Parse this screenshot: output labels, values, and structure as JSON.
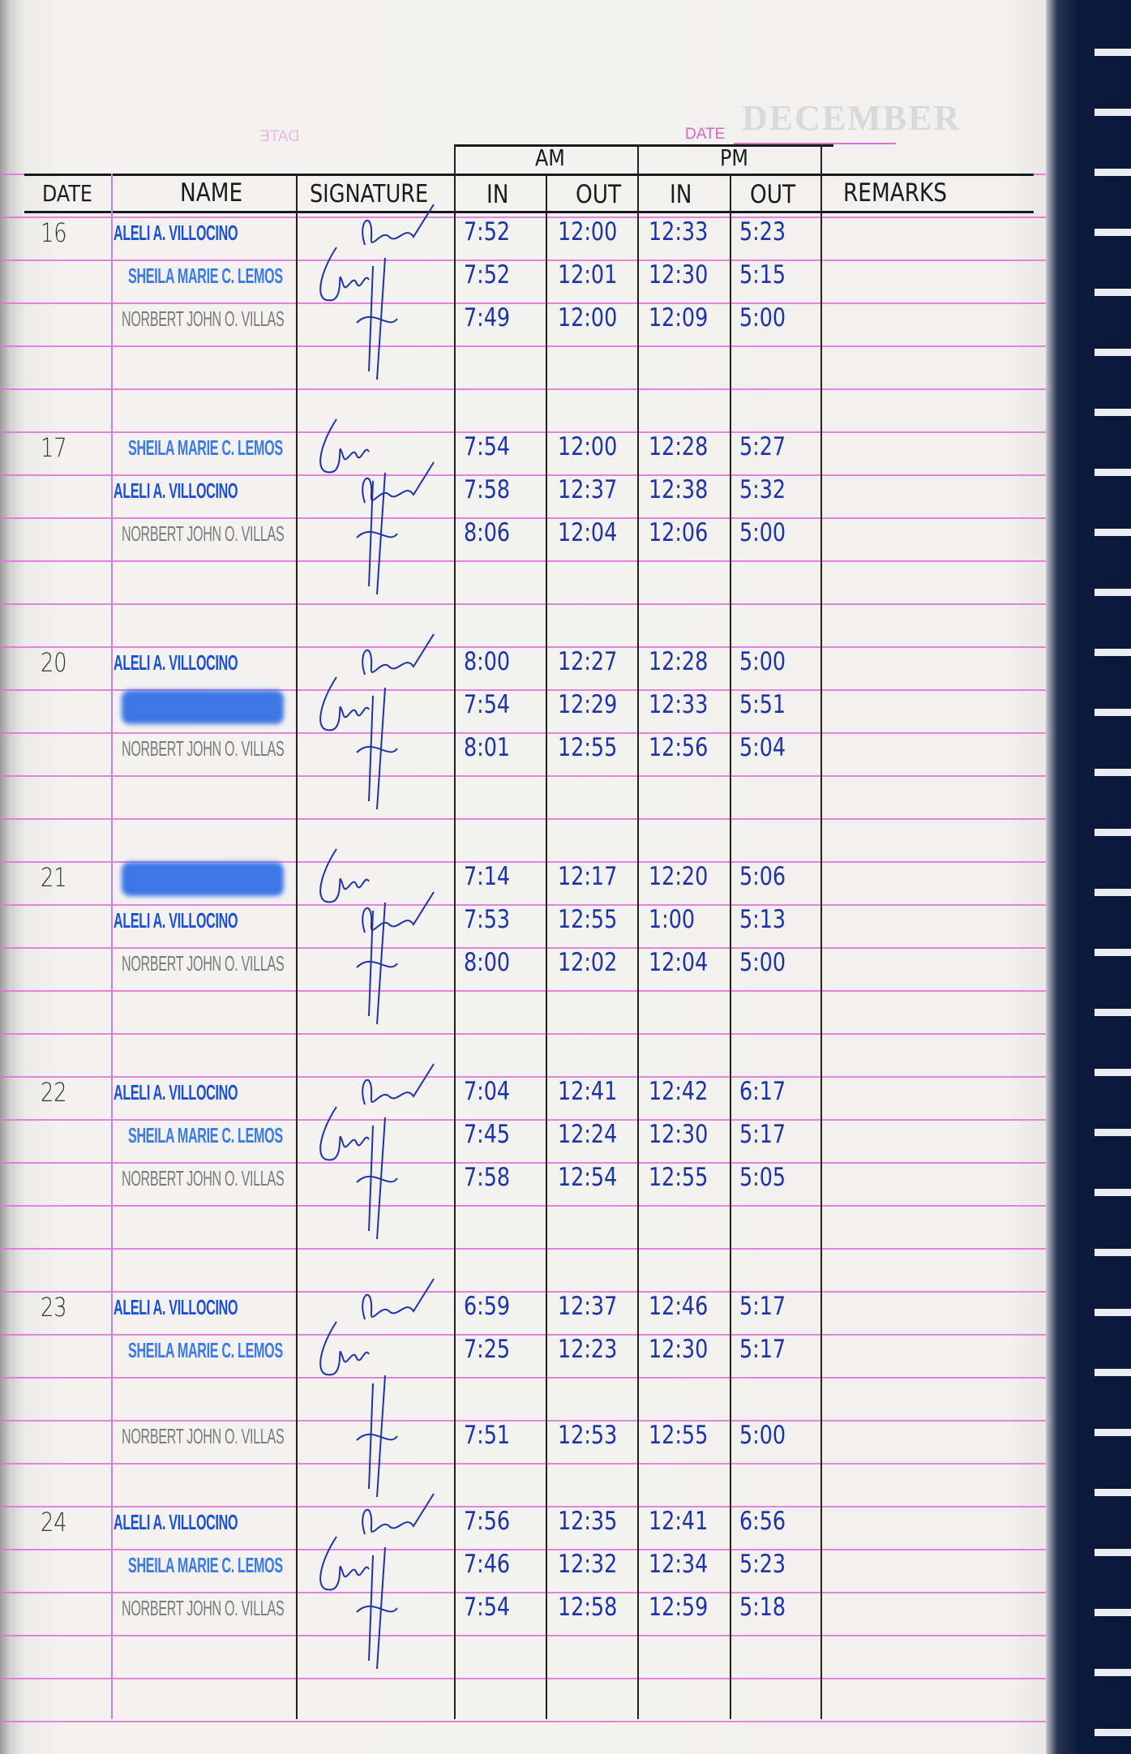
{
  "header": {
    "date_label": "DATE",
    "ghost_month": "DECEMBER",
    "ghost_date": "DATE",
    "col_date": "DATE",
    "col_name": "NAME",
    "col_signature": "SIGNATURE",
    "am": "AM",
    "pm": "PM",
    "am_in": "IN",
    "am_out": "OUT",
    "pm_in": "IN",
    "pm_out": "OUT",
    "col_remarks": "REMARKS"
  },
  "colors": {
    "pink_rule": "#e070d8",
    "ink": "#1e33a8",
    "stamp_aleli": "#1a4fd6",
    "stamp_sheila": "#3a7ae8",
    "stamp_norbert": "#7a7a7a",
    "binding": "#0d1a3c"
  },
  "days": [
    {
      "date": "16",
      "entries": [
        {
          "name": "ALELI A. VILLOCINO",
          "stamp": "aleli",
          "am_in": "7:52",
          "am_out": "12:00",
          "pm_in": "12:33",
          "pm_out": "5:23"
        },
        {
          "name": "SHEILA MARIE C. LEMOS",
          "stamp": "sheila",
          "am_in": "7:52",
          "am_out": "12:01",
          "pm_in": "12:30",
          "pm_out": "5:15"
        },
        {
          "name": "NORBERT JOHN O. VILLAS",
          "stamp": "norbert",
          "am_in": "7:49",
          "am_out": "12:00",
          "pm_in": "12:09",
          "pm_out": "5:00"
        }
      ]
    },
    {
      "date": "17",
      "entries": [
        {
          "name": "SHEILA MARIE C. LEMOS",
          "stamp": "sheila",
          "am_in": "7:54",
          "am_out": "12:00",
          "pm_in": "12:28",
          "pm_out": "5:27"
        },
        {
          "name": "ALELI A. VILLOCINO",
          "stamp": "aleli",
          "am_in": "7:58",
          "am_out": "12:37",
          "pm_in": "12:38",
          "pm_out": "5:32"
        },
        {
          "name": "NORBERT JOHN O. VILLAS",
          "stamp": "norbert",
          "am_in": "8:06",
          "am_out": "12:04",
          "pm_in": "12:06",
          "pm_out": "5:00"
        }
      ]
    },
    {
      "date": "20",
      "entries": [
        {
          "name": "ALELI A. VILLOCINO",
          "stamp": "aleli",
          "am_in": "8:00",
          "am_out": "12:27",
          "pm_in": "12:28",
          "pm_out": "5:00"
        },
        {
          "name": "",
          "stamp": "redacted",
          "am_in": "7:54",
          "am_out": "12:29",
          "pm_in": "12:33",
          "pm_out": "5:51"
        },
        {
          "name": "NORBERT JOHN O. VILLAS",
          "stamp": "norbert",
          "am_in": "8:01",
          "am_out": "12:55",
          "pm_in": "12:56",
          "pm_out": "5:04"
        }
      ]
    },
    {
      "date": "21",
      "entries": [
        {
          "name": "",
          "stamp": "redacted",
          "am_in": "7:14",
          "am_out": "12:17",
          "pm_in": "12:20",
          "pm_out": "5:06"
        },
        {
          "name": "ALELI A. VILLOCINO",
          "stamp": "aleli",
          "am_in": "7:53",
          "am_out": "12:55",
          "pm_in": "1:00",
          "pm_out": "5:13"
        },
        {
          "name": "NORBERT JOHN O. VILLAS",
          "stamp": "norbert",
          "am_in": "8:00",
          "am_out": "12:02",
          "pm_in": "12:04",
          "pm_out": "5:00"
        }
      ]
    },
    {
      "date": "22",
      "entries": [
        {
          "name": "ALELI A. VILLOCINO",
          "stamp": "aleli",
          "am_in": "7:04",
          "am_out": "12:41",
          "pm_in": "12:42",
          "pm_out": "6:17"
        },
        {
          "name": "SHEILA MARIE C. LEMOS",
          "stamp": "sheila",
          "am_in": "7:45",
          "am_out": "12:24",
          "pm_in": "12:30",
          "pm_out": "5:17"
        },
        {
          "name": "NORBERT JOHN O. VILLAS",
          "stamp": "norbert",
          "am_in": "7:58",
          "am_out": "12:54",
          "pm_in": "12:55",
          "pm_out": "5:05"
        }
      ]
    },
    {
      "date": "23",
      "entries": [
        {
          "name": "ALELI A. VILLOCINO",
          "stamp": "aleli",
          "am_in": "6:59",
          "am_out": "12:37",
          "pm_in": "12:46",
          "pm_out": "5:17"
        },
        {
          "name": "SHEILA MARIE C. LEMOS",
          "stamp": "sheila",
          "am_in": "7:25",
          "am_out": "12:23",
          "pm_in": "12:30",
          "pm_out": "5:17"
        },
        {
          "name": "NORBERT JOHN O. VILLAS",
          "stamp": "norbert",
          "am_in": "7:51",
          "am_out": "12:53",
          "pm_in": "12:55",
          "pm_out": "5:00"
        }
      ]
    },
    {
      "date": "24",
      "entries": [
        {
          "name": "ALELI A. VILLOCINO",
          "stamp": "aleli",
          "am_in": "7:56",
          "am_out": "12:35",
          "pm_in": "12:41",
          "pm_out": "6:56"
        },
        {
          "name": "SHEILA MARIE C. LEMOS",
          "stamp": "sheila",
          "am_in": "7:46",
          "am_out": "12:32",
          "pm_in": "12:34",
          "pm_out": "5:23"
        },
        {
          "name": "NORBERT JOHN O. VILLAS",
          "stamp": "norbert",
          "am_in": "7:54",
          "am_out": "12:58",
          "pm_in": "12:59",
          "pm_out": "5:18"
        }
      ]
    }
  ]
}
